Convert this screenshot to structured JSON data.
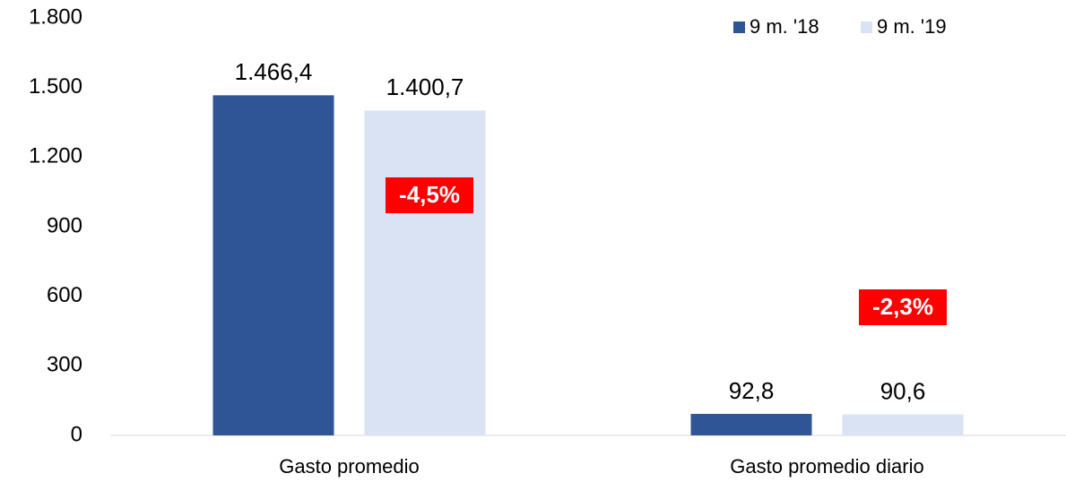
{
  "chart_data": {
    "type": "bar",
    "categories": [
      "Gasto promedio",
      "Gasto promedio diario"
    ],
    "series": [
      {
        "name": "9 m. '18",
        "color": "#2f5597",
        "values": [
          1466.4,
          92.8
        ],
        "value_labels": [
          "1.466,4",
          "92,8"
        ]
      },
      {
        "name": "9 m. '19",
        "color": "#dae3f3",
        "values": [
          1400.7,
          90.6
        ],
        "value_labels": [
          "1.400,7",
          "90,6"
        ]
      }
    ],
    "annotations": [
      "-4,5%",
      "-2,3%"
    ],
    "annotation_color": "#ff0000",
    "ylim": [
      0,
      1800
    ],
    "yticks": [
      0,
      300,
      600,
      900,
      {
        "value": 1200,
        "label": "1.200"
      },
      {
        "value": 1500,
        "label": "1.500"
      },
      {
        "value": 1800,
        "label": "1.800"
      }
    ],
    "grid": false,
    "legend": "top-right"
  }
}
